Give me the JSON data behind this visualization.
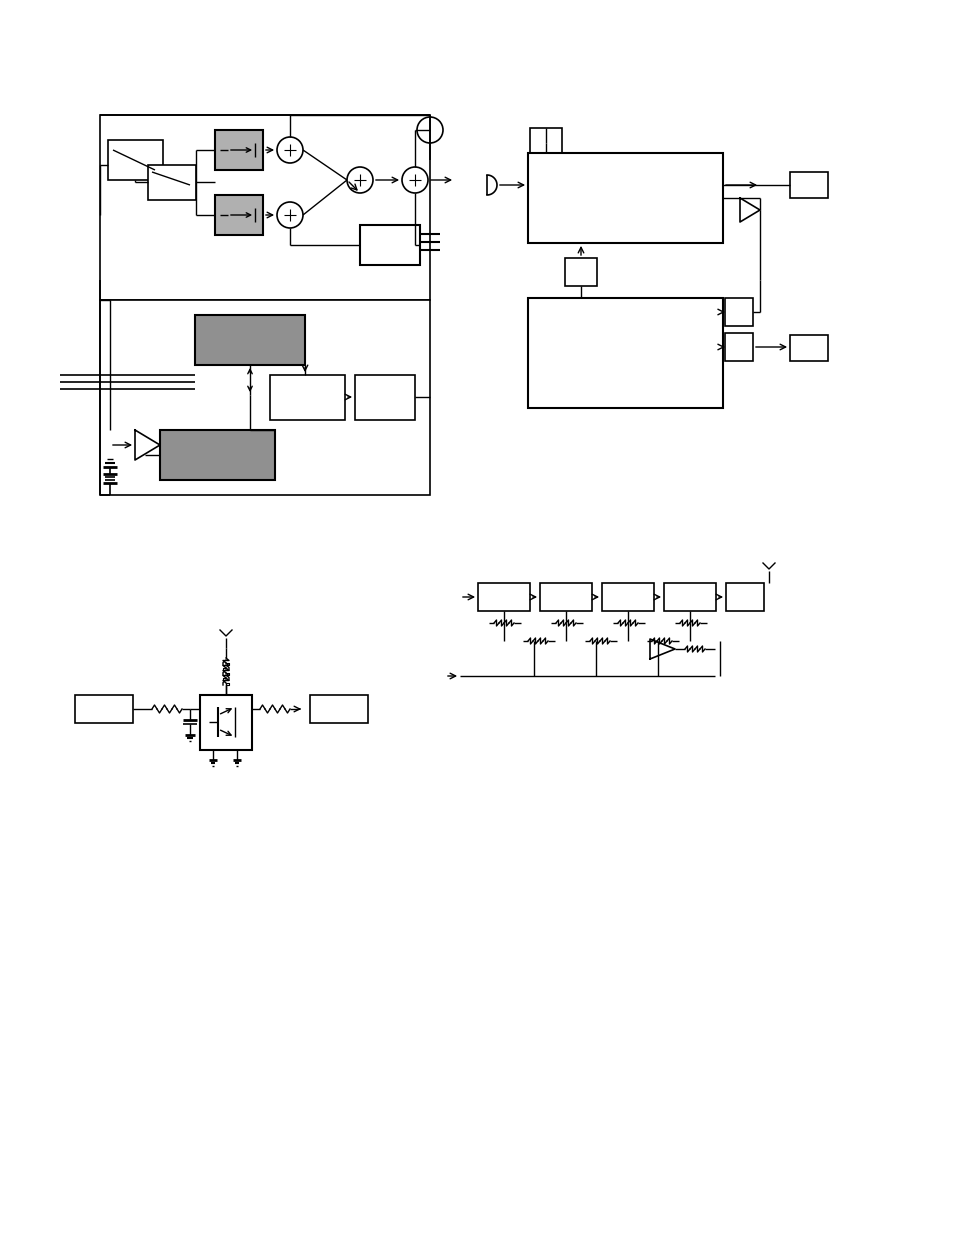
{
  "background_color": "#ffffff",
  "figure_width": 9.54,
  "figure_height": 12.35,
  "dpi": 100
}
